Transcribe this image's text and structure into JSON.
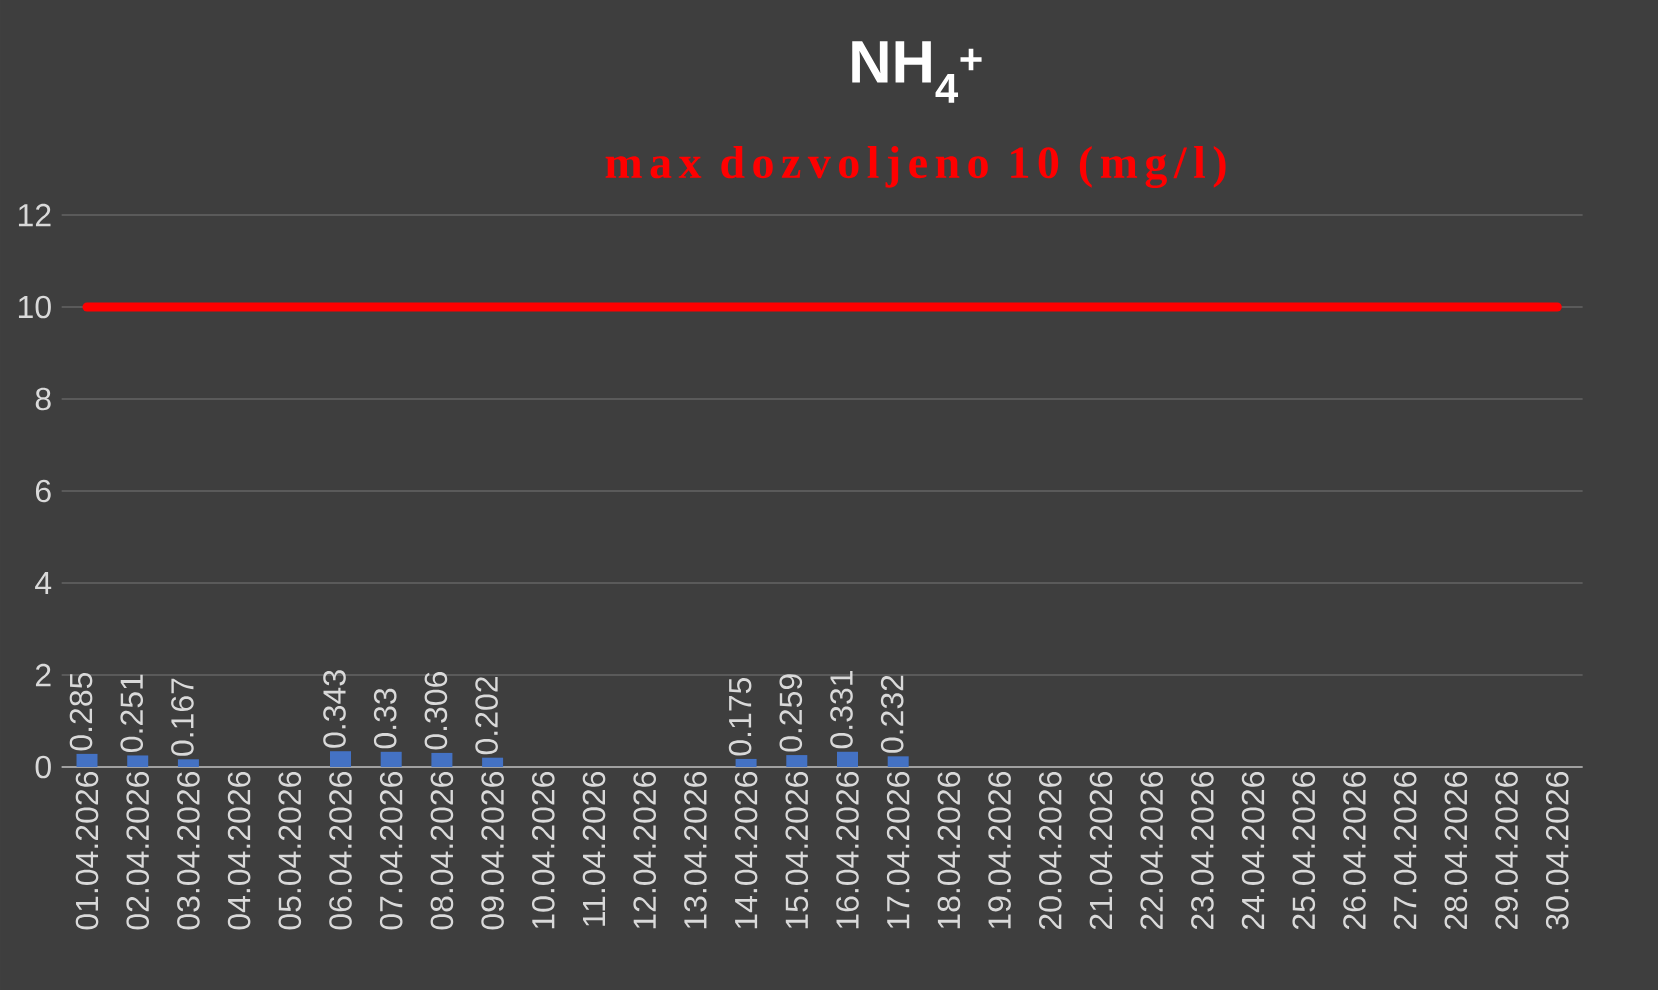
{
  "chart_data": {
    "type": "bar",
    "title": "NH$_{4}$$^{+}$",
    "subtitle": "max dozvoljeno 10 (mg/l)",
    "categories": [
      "01.04.2026",
      "02.04.2026",
      "03.04.2026",
      "04.04.2026",
      "05.04.2026",
      "06.04.2026",
      "07.04.2026",
      "08.04.2026",
      "09.04.2026",
      "10.04.2026",
      "11.04.2026",
      "12.04.2026",
      "13.04.2026",
      "14.04.2026",
      "15.04.2026",
      "16.04.2026",
      "17.04.2026",
      "18.04.2026",
      "19.04.2026",
      "20.04.2026",
      "21.04.2026",
      "22.04.2026",
      "23.04.2026",
      "24.04.2026",
      "25.04.2026",
      "26.04.2026",
      "27.04.2026",
      "28.04.2026",
      "29.04.2026",
      "30.04.2026"
    ],
    "values": [
      0.285,
      0.251,
      0.167,
      null,
      null,
      0.343,
      0.33,
      0.306,
      0.202,
      null,
      null,
      null,
      null,
      0.175,
      0.259,
      0.331,
      0.232,
      null,
      null,
      null,
      null,
      null,
      null,
      null,
      null,
      null,
      null,
      null,
      null,
      null
    ],
    "color": "#4472c4",
    "data_labels": true,
    "ylim": [
      0,
      12
    ],
    "yticks": [
      0,
      2,
      4,
      6,
      8,
      10,
      12
    ],
    "grid": "y",
    "ref_lines": [
      {
        "axis": "y",
        "value": 10,
        "color": "#ff0000"
      }
    ]
  }
}
